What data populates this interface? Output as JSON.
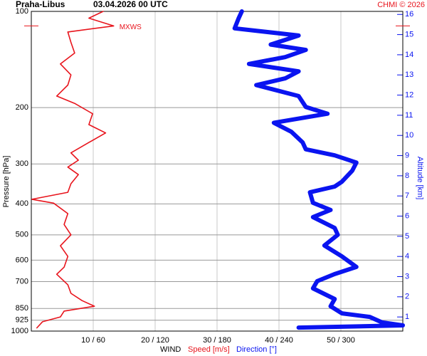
{
  "chart_data": {
    "type": "profile",
    "station": "Praha-Libus",
    "datetime": "03.04.2026 00 UTC",
    "credit": "CHMI © 2026",
    "ylabel": "Pressure [hPa]",
    "y2label": "Altitude [km]",
    "xlabel": "WIND",
    "annotation": "MXWS",
    "log_y": true,
    "ylim": [
      100,
      1000
    ],
    "yticks": [
      100,
      200,
      300,
      400,
      500,
      600,
      700,
      850,
      925,
      1000
    ],
    "xlim": [
      0,
      60
    ],
    "x2lim": [
      0,
      360
    ],
    "xticks": [
      {
        "value": 10,
        "label": "10 / 60"
      },
      {
        "value": 20,
        "label": "20 / 120"
      },
      {
        "value": 30,
        "label": "30 / 180"
      },
      {
        "value": 40,
        "label": "40 / 240"
      },
      {
        "value": 50,
        "label": "50 / 300"
      }
    ],
    "y2lim": [
      0.3,
      16.15
    ],
    "y2ticks": [
      1,
      2,
      3,
      4,
      5,
      6,
      7,
      8,
      9,
      10,
      11,
      12,
      13,
      14,
      15,
      16
    ],
    "grid": true,
    "series": [
      {
        "name": "Speed [m/s]",
        "color": "#e8141c",
        "axis": "x",
        "pressure": [
          977,
          935,
          903,
          866,
          836,
          803,
          762,
          716,
          664,
          631,
          584,
          541,
          500,
          464,
          429,
          398,
          387,
          368,
          346,
          324,
          307,
          292,
          277,
          257,
          240,
          226,
          209,
          194,
          184,
          170,
          158,
          146,
          135,
          125,
          116,
          111,
          105,
          100
        ],
        "values": [
          0.9,
          1.8,
          4.7,
          5.3,
          10.2,
          8.2,
          6.4,
          5.9,
          4.1,
          5.3,
          5.9,
          4.7,
          6.4,
          5.3,
          5.9,
          3.6,
          0.1,
          5.9,
          6.4,
          7.6,
          5.9,
          7.6,
          6.4,
          9.3,
          12.0,
          9.3,
          9.9,
          7.0,
          4.1,
          5.9,
          6.4,
          4.7,
          7.0,
          6.4,
          5.9,
          13.3,
          9.3,
          11.6
        ]
      },
      {
        "name": "Direction [°]",
        "color": "#0a14f0",
        "axis": "x2",
        "pressure": [
          975,
          960,
          940,
          903,
          880,
          836,
          794,
          735,
          698,
          663,
          630,
          584,
          540,
          500,
          476,
          440,
          418,
          397,
          368,
          353,
          341,
          315,
          297,
          282,
          270,
          257,
          238,
          223,
          209,
          199,
          184,
          170,
          162,
          154,
          146,
          139,
          132,
          127,
          119,
          113,
          105,
          100
        ],
        "values": [
          259,
          360,
          340,
          328,
          301,
          290,
          294,
          273,
          277,
          294,
          315,
          301,
          284,
          297,
          294,
          273,
          290,
          273,
          270,
          294,
          301,
          311,
          315,
          294,
          266,
          263,
          252,
          235,
          287,
          266,
          259,
          218,
          246,
          259,
          211,
          246,
          266,
          232,
          259,
          197,
          201,
          204
        ]
      }
    ]
  }
}
